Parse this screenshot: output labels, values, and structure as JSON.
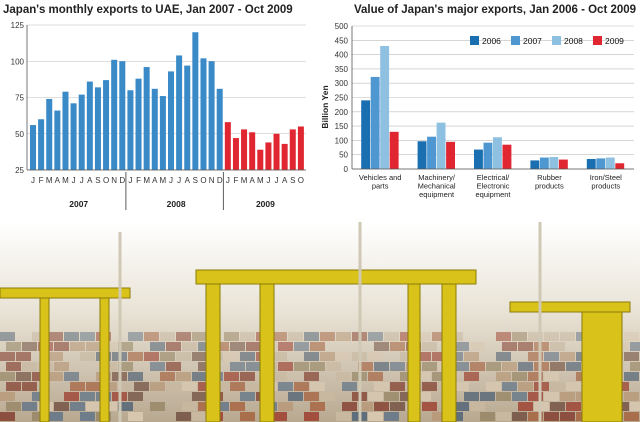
{
  "colors": {
    "blue": "#3a8ac8",
    "red": "#e02630",
    "c2006": "#1a6fb0",
    "c2007": "#4f97d1",
    "c2008": "#8ec0e2",
    "c2009": "#e02630"
  },
  "chart_data": [
    {
      "type": "bar",
      "title": "Japan's monthly exports to UAE, Jan 2007 - Oct 2009",
      "ylim": [
        25,
        125
      ],
      "yticks": [
        "25",
        "50",
        "75",
        "100",
        "125"
      ],
      "years": [
        "2007",
        "2008",
        "2009"
      ],
      "month_labels": [
        "J",
        "F",
        "M",
        "A",
        "M",
        "J",
        "J",
        "A",
        "S",
        "O",
        "N",
        "D",
        "J",
        "F",
        "M",
        "A",
        "M",
        "J",
        "J",
        "A",
        "S",
        "O",
        "N",
        "D",
        "J",
        "F",
        "M",
        "A",
        "M",
        "J",
        "J",
        "A",
        "S",
        "O"
      ],
      "series": [
        {
          "name": "2007-2008",
          "color_key": "blue",
          "values": [
            56,
            60,
            74,
            66,
            79,
            71,
            77,
            86,
            82,
            87,
            101,
            100,
            80,
            88,
            96,
            81,
            76,
            93,
            104,
            97,
            120,
            102,
            100,
            81
          ]
        },
        {
          "name": "2009",
          "color_key": "red",
          "values": [
            58,
            47,
            53,
            51,
            39,
            44,
            50,
            43,
            53,
            55
          ]
        }
      ]
    },
    {
      "type": "bar",
      "title": "Value of Japan's major exports, Jan 2006 - Oct 2009",
      "ylabel": "Billion Yen",
      "ylim": [
        0,
        500
      ],
      "yticks": [
        "0",
        "50",
        "100",
        "150",
        "200",
        "250",
        "300",
        "350",
        "400",
        "450",
        "500"
      ],
      "legend": [
        "2006",
        "2007",
        "2008",
        "2009"
      ],
      "categories": [
        {
          "lines": [
            "Vehicles and",
            "parts"
          ]
        },
        {
          "lines": [
            "Machinery/",
            "Mechanical",
            "equipment"
          ]
        },
        {
          "lines": [
            "Electrical/",
            "Electronic",
            "equipment"
          ]
        },
        {
          "lines": [
            "Rubber",
            "products"
          ]
        },
        {
          "lines": [
            "Iron/Steel",
            "products"
          ]
        }
      ],
      "series": [
        {
          "name": "2006",
          "color_key": "c2006",
          "values": [
            240,
            97,
            68,
            30,
            35
          ]
        },
        {
          "name": "2007",
          "color_key": "c2007",
          "values": [
            322,
            113,
            92,
            40,
            37
          ]
        },
        {
          "name": "2008",
          "color_key": "c2008",
          "values": [
            430,
            162,
            111,
            42,
            40
          ]
        },
        {
          "name": "2009",
          "color_key": "c2009",
          "values": [
            130,
            95,
            85,
            33,
            20
          ]
        }
      ]
    }
  ]
}
